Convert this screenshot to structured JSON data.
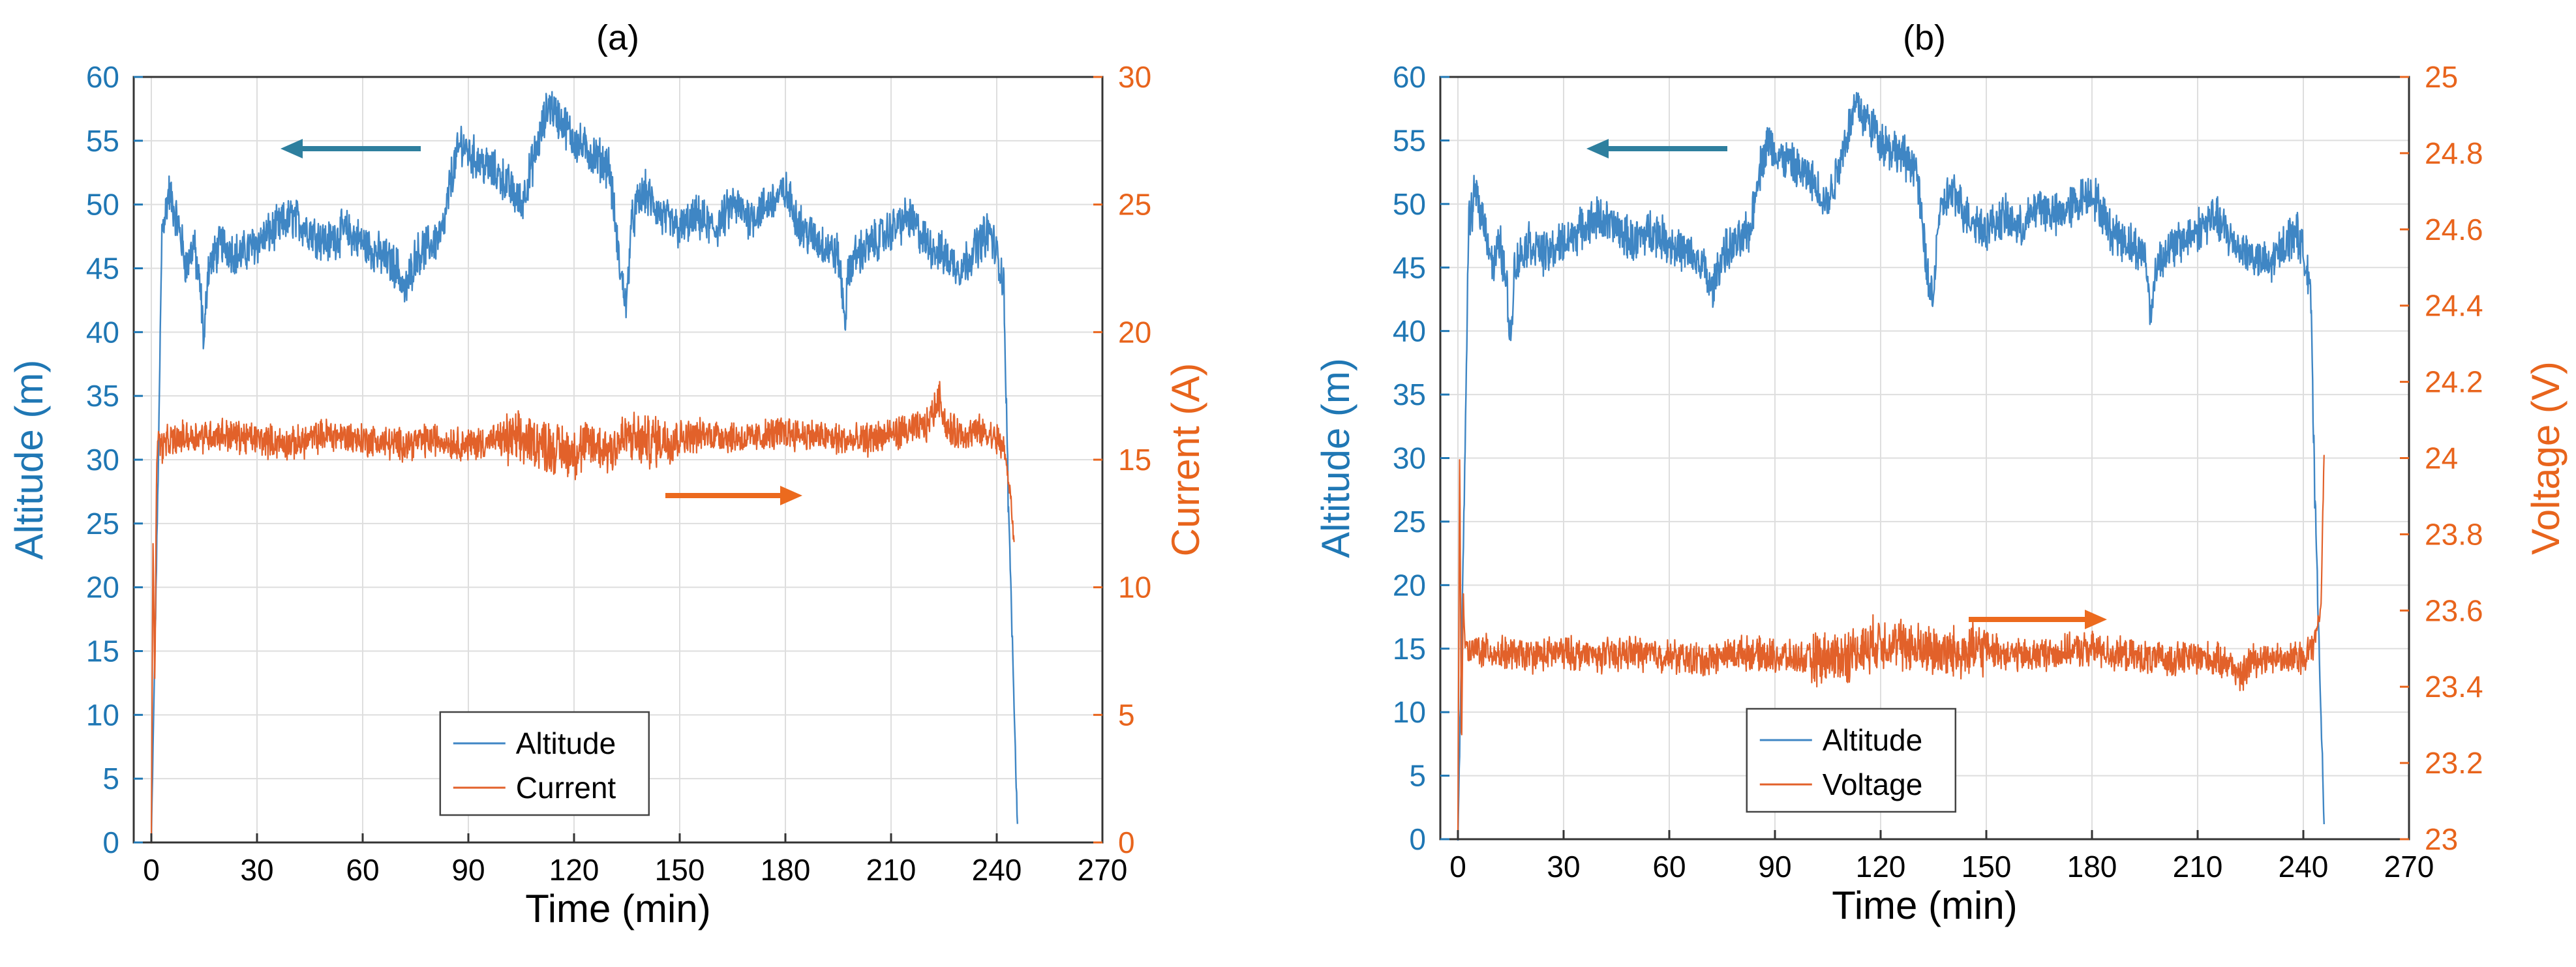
{
  "colors": {
    "left_axis": "#1f77b4",
    "right_axis": "#e8641c",
    "altitude": "#3f86c4",
    "series2": "#e2612a",
    "arrow_left": "#2e7f9e",
    "arrow_right": "#ec6a1e",
    "grid": "#dedede"
  },
  "chart_data": [
    {
      "type": "line",
      "title": "(a)",
      "xlabel": "Time (min)",
      "ylabel_left": "Altitude (m)",
      "ylabel_right": "Current (A)",
      "xlim": [
        -5,
        270
      ],
      "ylim_left": [
        0,
        60
      ],
      "ylim_right": [
        0,
        30
      ],
      "xticks": [
        0,
        30,
        60,
        90,
        120,
        150,
        180,
        210,
        240,
        270
      ],
      "yticks_left": [
        0,
        5,
        10,
        15,
        20,
        25,
        30,
        35,
        40,
        45,
        50,
        55,
        60
      ],
      "yticks_right": [
        0,
        5,
        10,
        15,
        20,
        25,
        30
      ],
      "legend": [
        "Altitude",
        "Current"
      ],
      "legend_position": "bottom-center",
      "series": [
        {
          "name": "Altitude",
          "axis": "left",
          "x": [
            0,
            2,
            3,
            5,
            8,
            10,
            12,
            14,
            15,
            16,
            18,
            20,
            25,
            30,
            35,
            40,
            45,
            50,
            55,
            60,
            65,
            70,
            72,
            75,
            80,
            83,
            85,
            88,
            90,
            95,
            100,
            105,
            110,
            113,
            115,
            118,
            120,
            125,
            130,
            133,
            135,
            136,
            138,
            140,
            145,
            150,
            155,
            160,
            165,
            170,
            175,
            180,
            185,
            190,
            195,
            197,
            198,
            200,
            205,
            210,
            215,
            220,
            225,
            230,
            235,
            238,
            240,
            242,
            243,
            244,
            245,
            246
          ],
          "y": [
            0,
            30,
            48,
            51,
            48,
            45,
            47,
            43,
            39,
            45,
            46,
            47,
            46,
            47,
            48,
            49,
            48,
            47,
            48,
            47,
            46,
            45,
            43,
            46,
            47,
            48,
            52,
            55,
            54,
            53,
            52,
            50,
            55,
            58,
            57,
            56,
            55,
            54,
            53,
            45,
            42,
            48,
            50,
            51,
            49,
            48,
            49,
            48,
            50,
            49,
            50,
            51,
            48,
            47,
            46,
            41,
            45,
            46,
            47,
            48,
            49,
            47,
            46,
            45,
            47,
            48,
            46,
            44,
            30,
            20,
            10,
            0
          ]
        },
        {
          "name": "Current",
          "axis": "right",
          "x": [
            0,
            0.5,
            1,
            1.5,
            2,
            3,
            5,
            10,
            20,
            30,
            40,
            50,
            60,
            70,
            80,
            90,
            100,
            110,
            115,
            120,
            125,
            130,
            135,
            140,
            150,
            160,
            170,
            180,
            190,
            200,
            210,
            220,
            224,
            225,
            226,
            230,
            235,
            240,
            242,
            243,
            244,
            245
          ],
          "y": [
            0,
            12,
            6,
            15,
            16,
            15.5,
            15.7,
            15.9,
            16.0,
            15.8,
            15.6,
            16.0,
            15.8,
            15.6,
            15.8,
            15.6,
            15.8,
            15.7,
            15.4,
            15.3,
            15.6,
            15.4,
            15.9,
            15.7,
            15.9,
            16.0,
            15.8,
            16.1,
            15.9,
            15.7,
            16.0,
            16.3,
            17.5,
            16.6,
            16.2,
            16.0,
            16.1,
            15.8,
            15.5,
            14.5,
            13.5,
            11.5
          ]
        }
      ]
    },
    {
      "type": "line",
      "title": "(b)",
      "xlabel": "Time (min)",
      "ylabel_left": "Altitude (m)",
      "ylabel_right": "Voltage (V)",
      "xlim": [
        -5,
        270
      ],
      "ylim_left": [
        0,
        60
      ],
      "ylim_right": [
        23,
        25
      ],
      "xticks": [
        0,
        30,
        60,
        90,
        120,
        150,
        180,
        210,
        240,
        270
      ],
      "yticks_left": [
        0,
        5,
        10,
        15,
        20,
        25,
        30,
        35,
        40,
        45,
        50,
        55,
        60
      ],
      "yticks_right": [
        23,
        23.2,
        23.4,
        23.6,
        23.8,
        24,
        24.2,
        24.4,
        24.6,
        24.8,
        25
      ],
      "legend": [
        "Altitude",
        "Voltage"
      ],
      "legend_position": "bottom-center",
      "series": [
        {
          "name": "Altitude",
          "axis": "left",
          "x": [
            0,
            2,
            3,
            5,
            8,
            10,
            12,
            14,
            15,
            16,
            18,
            20,
            25,
            30,
            35,
            40,
            45,
            50,
            55,
            60,
            65,
            70,
            72,
            75,
            80,
            83,
            85,
            88,
            90,
            95,
            100,
            105,
            110,
            113,
            115,
            118,
            120,
            125,
            130,
            133,
            135,
            136,
            138,
            140,
            145,
            150,
            155,
            160,
            165,
            170,
            175,
            180,
            185,
            190,
            195,
            197,
            198,
            200,
            205,
            210,
            215,
            220,
            225,
            230,
            235,
            238,
            240,
            242,
            243,
            244,
            245,
            246
          ],
          "y": [
            0,
            30,
            48,
            51,
            48,
            45,
            47,
            43,
            39,
            45,
            46,
            47,
            46,
            47,
            48,
            49,
            48,
            47,
            48,
            47,
            46,
            45,
            43,
            46,
            47,
            48,
            52,
            55,
            54,
            53,
            52,
            50,
            55,
            58,
            57,
            56,
            55,
            54,
            53,
            45,
            42,
            48,
            50,
            51,
            49,
            48,
            49,
            48,
            50,
            49,
            50,
            51,
            48,
            47,
            46,
            41,
            45,
            46,
            47,
            48,
            49,
            47,
            46,
            45,
            47,
            48,
            46,
            44,
            30,
            20,
            10,
            0
          ]
        },
        {
          "name": "Voltage",
          "axis": "right",
          "x": [
            0,
            0.5,
            1,
            1.5,
            2,
            3,
            5,
            10,
            20,
            30,
            40,
            50,
            60,
            70,
            80,
            90,
            100,
            110,
            115,
            120,
            125,
            130,
            140,
            150,
            160,
            170,
            180,
            190,
            200,
            210,
            220,
            222,
            225,
            230,
            235,
            240,
            242,
            243,
            244,
            245,
            246
          ],
          "y": [
            23,
            24.05,
            23.2,
            23.65,
            23.52,
            23.48,
            23.5,
            23.49,
            23.48,
            23.49,
            23.48,
            23.49,
            23.48,
            23.47,
            23.49,
            23.48,
            23.47,
            23.48,
            23.5,
            23.52,
            23.51,
            23.5,
            23.49,
            23.5,
            23.48,
            23.49,
            23.5,
            23.48,
            23.47,
            23.48,
            23.46,
            23.42,
            23.47,
            23.48,
            23.47,
            23.48,
            23.5,
            23.52,
            23.56,
            23.6,
            24.08
          ]
        }
      ]
    }
  ]
}
